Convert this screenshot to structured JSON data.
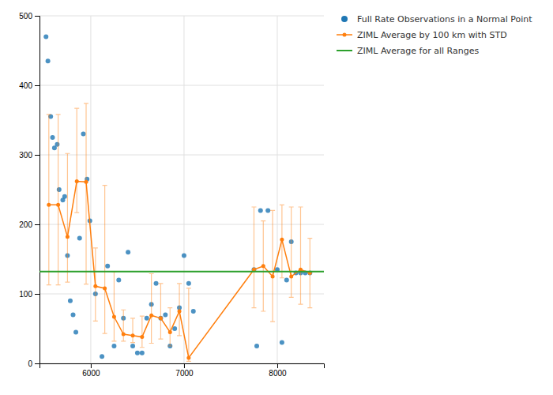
{
  "chart_data": {
    "type": "scatter",
    "xlim": [
      5450,
      8500
    ],
    "ylim": [
      0,
      500
    ],
    "xticks": [
      6000,
      7000,
      8000
    ],
    "yticks": [
      0,
      100,
      200,
      300,
      400,
      500
    ],
    "grid": true,
    "legend": "right",
    "series": [
      {
        "name": "Full Rate Observations in a Normal Point",
        "type": "scatter",
        "marker": "circle",
        "x": [
          5520,
          5540,
          5570,
          5590,
          5610,
          5640,
          5660,
          5700,
          5720,
          5750,
          5780,
          5810,
          5840,
          5880,
          5920,
          5960,
          5990,
          6050,
          6120,
          6180,
          6250,
          6300,
          6350,
          6400,
          6450,
          6500,
          6550,
          6600,
          6650,
          6700,
          6750,
          6800,
          6850,
          6900,
          6950,
          7000,
          7050,
          7100,
          7750,
          7780,
          7820,
          7900,
          8000,
          8050,
          8100,
          8150,
          8200,
          8250,
          8300,
          8350
        ],
        "values": [
          470,
          435,
          355,
          325,
          310,
          315,
          250,
          235,
          240,
          155,
          90,
          70,
          45,
          180,
          330,
          265,
          205,
          100,
          10,
          140,
          25,
          120,
          65,
          160,
          25,
          15,
          15,
          65,
          85,
          115,
          65,
          70,
          25,
          50,
          80,
          155,
          115,
          75,
          135,
          25,
          220,
          220,
          135,
          30,
          120,
          175,
          130,
          130,
          130,
          130
        ]
      },
      {
        "name": "ZIML Average by 100 km with STD",
        "type": "line",
        "marker": "circle",
        "line_style": "solid",
        "x": [
          5550,
          5650,
          5750,
          5850,
          5950,
          6050,
          6150,
          6250,
          6350,
          6450,
          6550,
          6650,
          6750,
          6850,
          6950,
          7050,
          7750,
          7850,
          7950,
          8050,
          8150,
          8250,
          8350
        ],
        "values": [
          228,
          228,
          182,
          262,
          261,
          111,
          108,
          67,
          42,
          40,
          38,
          69,
          65,
          45,
          75,
          8,
          135,
          140,
          125,
          178,
          125,
          135,
          130
        ],
        "err_low": [
          115,
          115,
          65,
          45,
          147,
          50,
          65,
          35,
          10,
          10,
          15,
          40,
          30,
          20,
          35,
          5,
          55,
          65,
          65,
          55,
          30,
          50,
          50
        ],
        "err_high": [
          130,
          130,
          120,
          105,
          113,
          55,
          148,
          65,
          35,
          25,
          30,
          60,
          50,
          35,
          40,
          100,
          90,
          65,
          95,
          50,
          100,
          90,
          50
        ]
      },
      {
        "name": "ZIML Average for all Ranges",
        "type": "hline",
        "line_style": "solid",
        "values": [
          132
        ]
      }
    ]
  }
}
